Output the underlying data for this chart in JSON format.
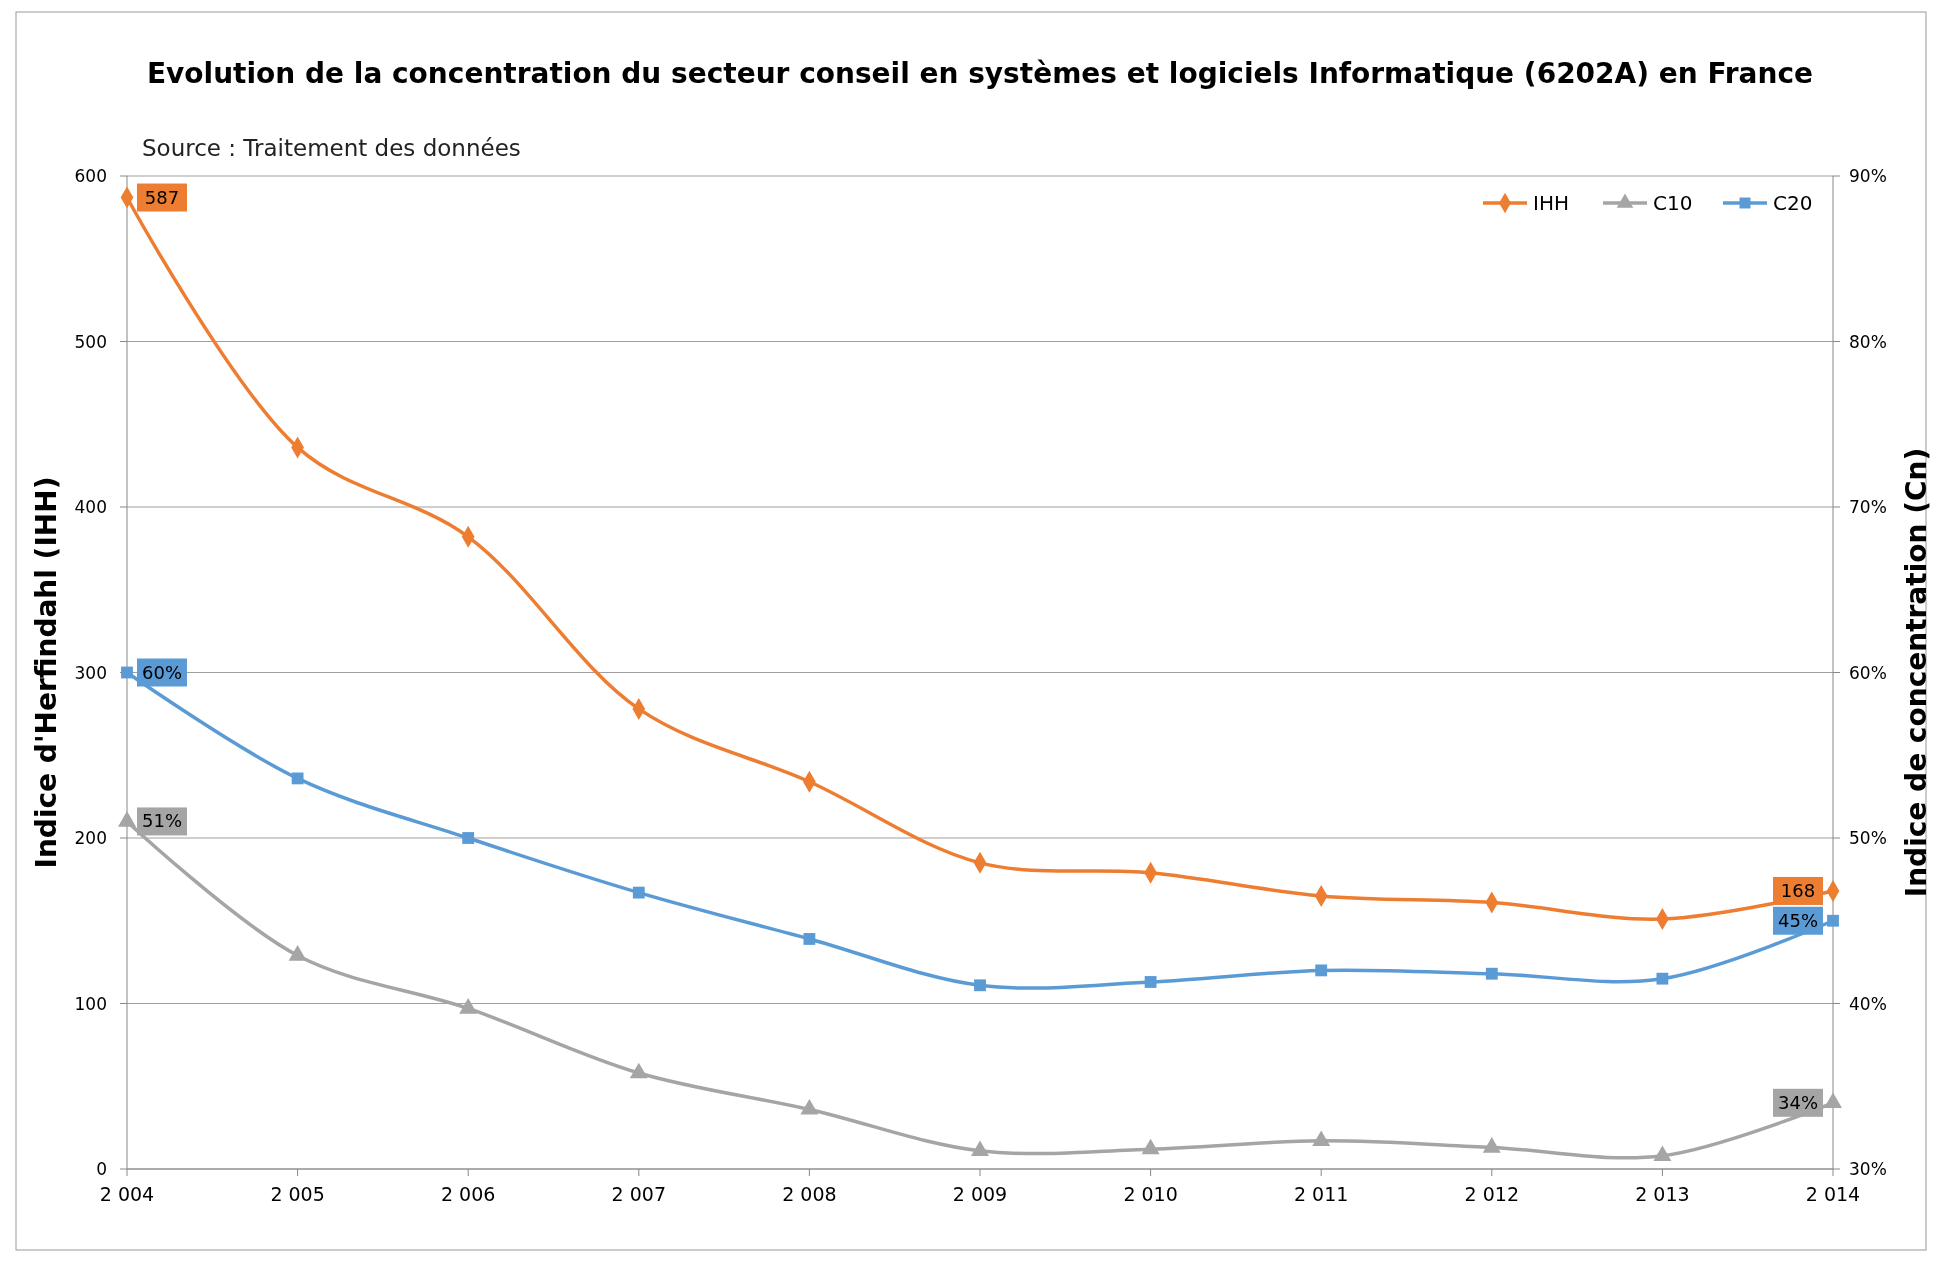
{
  "chart_data": {
    "type": "line",
    "title": "Evolution de la concentration du secteur conseil en systèmes et logiciels Informatique (6202A) en France",
    "annotations": [
      "Source : Traitement des données"
    ],
    "ylabel": "Indice d'Herfindahl (IHH)",
    "y2label": "Indice de concentration (Cn)",
    "x": [
      2004,
      2005,
      2006,
      2007,
      2008,
      2009,
      2010,
      2011,
      2012,
      2013,
      2014
    ],
    "xlim": [
      2004,
      2014
    ],
    "xticks": [
      {
        "value": 2004,
        "label": "2 004"
      },
      {
        "value": 2005,
        "label": "2 005"
      },
      {
        "value": 2006,
        "label": "2 006"
      },
      {
        "value": 2007,
        "label": "2 007"
      },
      {
        "value": 2008,
        "label": "2 008"
      },
      {
        "value": 2009,
        "label": "2 009"
      },
      {
        "value": 2010,
        "label": "2 010"
      },
      {
        "value": 2011,
        "label": "2 011"
      },
      {
        "value": 2012,
        "label": "2 012"
      },
      {
        "value": 2013,
        "label": "2 013"
      },
      {
        "value": 2014,
        "label": "2 014"
      }
    ],
    "ylim": [
      0,
      600
    ],
    "yticks": [
      0,
      100,
      200,
      300,
      400,
      500,
      600
    ],
    "y2lim": [
      30,
      90
    ],
    "y2ticks": [
      {
        "value": 30,
        "label": "30%"
      },
      {
        "value": 40,
        "label": "40%"
      },
      {
        "value": 50,
        "label": "50%"
      },
      {
        "value": 60,
        "label": "60%"
      },
      {
        "value": 70,
        "label": "70%"
      },
      {
        "value": 80,
        "label": "80%"
      },
      {
        "value": 90,
        "label": "90%"
      }
    ],
    "grid": "y",
    "legend": "top right",
    "series": [
      {
        "name": "IHH",
        "color": "#ed7d31",
        "marker": "diamond",
        "values": [
          587,
          436,
          382,
          278,
          234,
          185,
          179,
          165,
          161,
          151,
          168
        ],
        "value_labels": [
          "587",
          null,
          null,
          null,
          null,
          null,
          null,
          null,
          null,
          null,
          "168"
        ]
      },
      {
        "name": "C10",
        "color": "#a5a5a5",
        "marker": "triangle",
        "axis": "y2",
        "values": [
          51,
          42.9,
          39.7,
          35.8,
          33.6,
          31.1,
          31.2,
          31.7,
          31.3,
          30.8,
          34
        ],
        "value_labels": [
          "51%",
          null,
          null,
          null,
          null,
          null,
          null,
          null,
          null,
          null,
          "34%"
        ]
      },
      {
        "name": "C20",
        "color": "#5b9bd5",
        "marker": "square",
        "axis": "y2",
        "values": [
          60,
          53.6,
          50,
          46.7,
          43.9,
          41.1,
          41.3,
          42,
          41.8,
          41.5,
          45
        ],
        "value_labels": [
          "60%",
          null,
          null,
          null,
          null,
          null,
          null,
          null,
          null,
          null,
          "45%"
        ]
      }
    ]
  }
}
